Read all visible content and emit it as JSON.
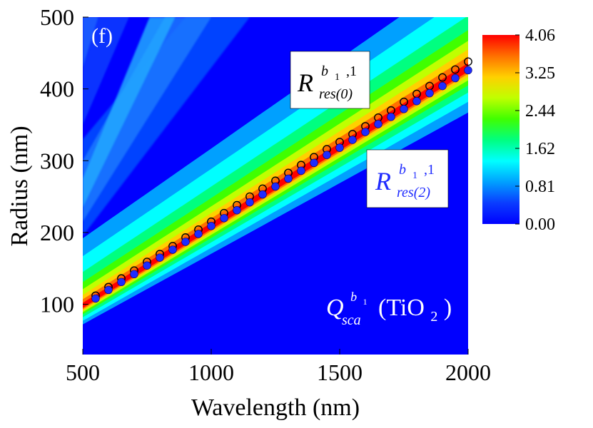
{
  "chart_data": {
    "type": "heatmap",
    "panel_label": "(f)",
    "xlabel": "Wavelength (nm)",
    "ylabel": "Radius (nm)",
    "xlim": [
      500,
      2000
    ],
    "ylim": [
      30,
      500
    ],
    "xticks": [
      500,
      1000,
      1500,
      2000
    ],
    "yticks": [
      100,
      200,
      300,
      400,
      500
    ],
    "colorbar": {
      "min": 0.0,
      "max": 4.06,
      "ticks": [
        "4.06",
        "3.25",
        "2.44",
        "1.62",
        "0.81",
        "0.00"
      ],
      "colormap": [
        "#0000ff",
        "#0a3cff",
        "#00a0ff",
        "#00ffff",
        "#00ff80",
        "#40ff00",
        "#c0ff00",
        "#ffd000",
        "#ff7000",
        "#ff0000"
      ]
    },
    "annotations": {
      "res0": {
        "base": "R",
        "sup": "b",
        "sup_sub": "1",
        "sup_tail": ",1",
        "sub": "res(0)"
      },
      "res2": {
        "base": "R",
        "sup": "b",
        "sup_sub": "1",
        "sup_tail": ",1",
        "sub": "res(2)"
      },
      "qsca": {
        "base": "Q",
        "sup": "b",
        "sup_sub": "1",
        "sub": "sca",
        "material": "(TiO",
        "material_sub": "2",
        "material_close": ")"
      }
    },
    "resonance_ridge": {
      "description": "Q_sca^{b1} maximum ridge along radius vs wavelength",
      "x": [
        500,
        2000
      ],
      "y": [
        97,
        427
      ]
    },
    "series": [
      {
        "name": "R_res(0)^{b1,1}",
        "marker": "open-circle",
        "color": "#000000",
        "x": [
          550,
          600,
          650,
          700,
          750,
          800,
          850,
          900,
          950,
          1000,
          1050,
          1100,
          1150,
          1200,
          1250,
          1300,
          1350,
          1400,
          1450,
          1500,
          1550,
          1600,
          1650,
          1700,
          1750,
          1800,
          1850,
          1900,
          1950,
          2000
        ],
        "y": [
          112,
          124,
          136,
          147,
          159,
          170,
          181,
          193,
          204,
          215,
          227,
          238,
          250,
          261,
          272,
          283,
          294,
          305,
          316,
          326,
          337,
          348,
          360,
          370,
          382,
          393,
          404,
          416,
          427,
          438
        ]
      },
      {
        "name": "R_res(2)^{b1,1}",
        "marker": "filled-circle",
        "color": "#1f2bff",
        "x": [
          550,
          600,
          650,
          700,
          750,
          800,
          850,
          900,
          950,
          1000,
          1050,
          1100,
          1150,
          1200,
          1250,
          1300,
          1350,
          1400,
          1450,
          1500,
          1550,
          1600,
          1650,
          1700,
          1750,
          1800,
          1850,
          1900,
          1950,
          2000
        ],
        "y": [
          108,
          120,
          131,
          142,
          154,
          165,
          176,
          187,
          198,
          209,
          220,
          231,
          242,
          253,
          264,
          275,
          286,
          297,
          308,
          318,
          329,
          340,
          351,
          361,
          372,
          383,
          394,
          404,
          415,
          426
        ]
      }
    ]
  }
}
